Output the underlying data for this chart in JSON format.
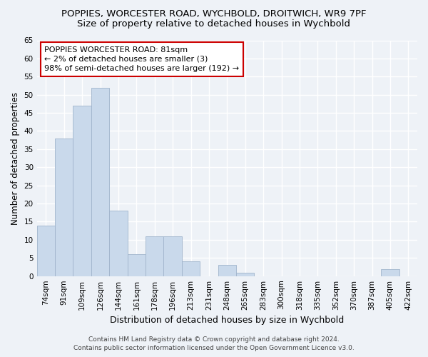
{
  "title1": "POPPIES, WORCESTER ROAD, WYCHBOLD, DROITWICH, WR9 7PF",
  "title2": "Size of property relative to detached houses in Wychbold",
  "xlabel": "Distribution of detached houses by size in Wychbold",
  "ylabel": "Number of detached properties",
  "categories": [
    "74sqm",
    "91sqm",
    "109sqm",
    "126sqm",
    "144sqm",
    "161sqm",
    "178sqm",
    "196sqm",
    "213sqm",
    "231sqm",
    "248sqm",
    "265sqm",
    "283sqm",
    "300sqm",
    "318sqm",
    "335sqm",
    "352sqm",
    "370sqm",
    "387sqm",
    "405sqm",
    "422sqm"
  ],
  "values": [
    14,
    38,
    47,
    52,
    18,
    6,
    11,
    11,
    4,
    0,
    3,
    1,
    0,
    0,
    0,
    0,
    0,
    0,
    0,
    2,
    0
  ],
  "bar_color": "#c9d9eb",
  "bar_edge_color": "#a0b4cc",
  "ylim": [
    0,
    65
  ],
  "yticks": [
    0,
    5,
    10,
    15,
    20,
    25,
    30,
    35,
    40,
    45,
    50,
    55,
    60,
    65
  ],
  "annotation_title": "POPPIES WORCESTER ROAD: 81sqm",
  "annotation_line2": "← 2% of detached houses are smaller (3)",
  "annotation_line3": "98% of semi-detached houses are larger (192) →",
  "annotation_box_color": "#ffffff",
  "annotation_box_edge": "#cc0000",
  "footer1": "Contains HM Land Registry data © Crown copyright and database right 2024.",
  "footer2": "Contains public sector information licensed under the Open Government Licence v3.0.",
  "bg_color": "#eef2f7",
  "grid_color": "#ffffff",
  "title_fontsize": 9.5,
  "subtitle_fontsize": 9.5,
  "xlabel_fontsize": 9,
  "ylabel_fontsize": 8.5,
  "tick_fontsize": 7.5,
  "annotation_fontsize": 8,
  "footer_fontsize": 6.5
}
